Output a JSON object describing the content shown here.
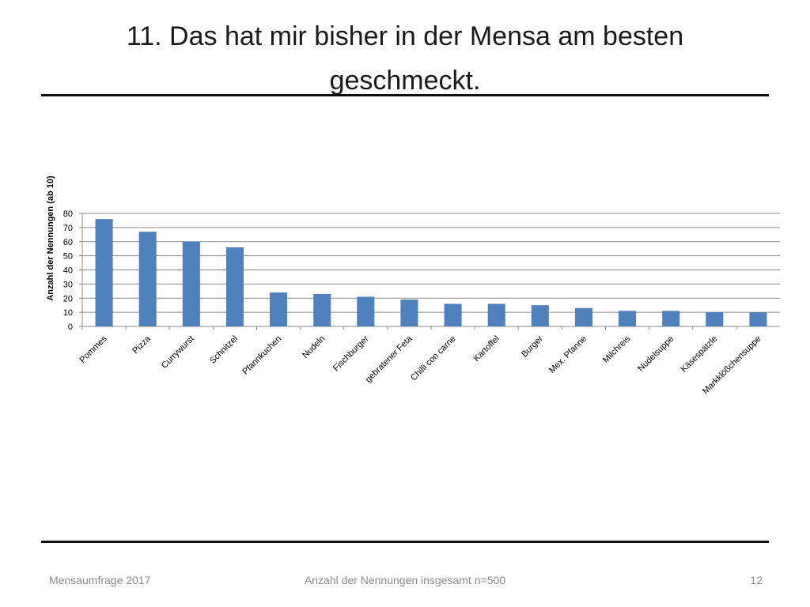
{
  "slide": {
    "title": "11. Das hat mir bisher in der Mensa am besten geschmeckt.",
    "footer_left": "Mensaumfrage 2017",
    "footer_center": "Anzahl der Nennungen insgesamt n=500",
    "footer_right": "12"
  },
  "chart_data": {
    "type": "bar",
    "title": "",
    "xlabel": "",
    "ylabel": "Anzahl der Nennungen (ab 10)",
    "ylim": [
      0,
      80
    ],
    "yticks": [
      0,
      10,
      20,
      30,
      40,
      50,
      60,
      70,
      80
    ],
    "grid": true,
    "bar_color": "#4f81bd",
    "categories": [
      "Pommes",
      "Pizza",
      "Currywurst",
      "Schnitzel",
      "Pfannkuchen",
      "Nudeln",
      "Fischburger",
      "gebratener Feta",
      "Chilli con carne",
      "Kartoffel",
      "Burger",
      "Mex. Pfanne",
      "Milchreis",
      "Nudelsuppe",
      "Käsespätzle",
      "Markklößchensuppe"
    ],
    "values": [
      76,
      67,
      60,
      56,
      24,
      23,
      21,
      19,
      16,
      16,
      15,
      13,
      11,
      11,
      10,
      10
    ]
  }
}
